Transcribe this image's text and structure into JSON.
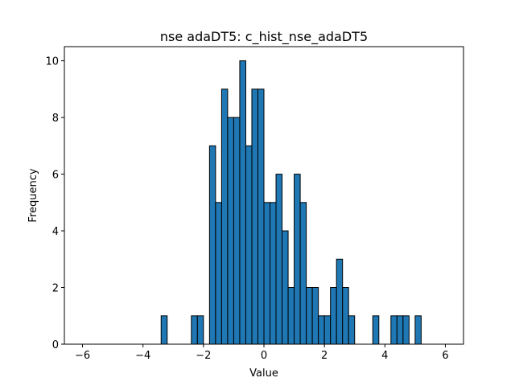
{
  "chart_data": {
    "type": "bar",
    "title": "nse adaDT5: c_hist_nse_adaDT5",
    "xlabel": "Value",
    "ylabel": "Frequency",
    "xlim": [
      -6.6,
      6.6
    ],
    "ylim": [
      0,
      10.5
    ],
    "xticks": [
      -6,
      -4,
      -2,
      0,
      2,
      4,
      6
    ],
    "xtick_labels": [
      "−6",
      "−4",
      "−2",
      "0",
      "2",
      "4",
      "6"
    ],
    "yticks": [
      0,
      2,
      4,
      6,
      8,
      10
    ],
    "ytick_labels": [
      "0",
      "2",
      "4",
      "6",
      "8",
      "10"
    ],
    "grid": false,
    "bar_color": "#1f77b4",
    "edge_color": "#000000",
    "bin_edges_start": -6.0,
    "bin_width": 0.2,
    "counts": [
      0,
      0,
      0,
      0,
      0,
      0,
      0,
      0,
      0,
      0,
      0,
      0,
      0,
      1,
      0,
      0,
      0,
      0,
      1,
      1,
      0,
      7,
      5,
      9,
      8,
      8,
      10,
      7,
      9,
      9,
      5,
      5,
      6,
      4,
      2,
      6,
      5,
      2,
      2,
      1,
      1,
      2,
      3,
      2,
      1,
      0,
      0,
      0,
      1,
      0,
      0,
      1,
      1,
      1,
      0,
      1,
      0,
      0,
      0,
      0
    ]
  }
}
